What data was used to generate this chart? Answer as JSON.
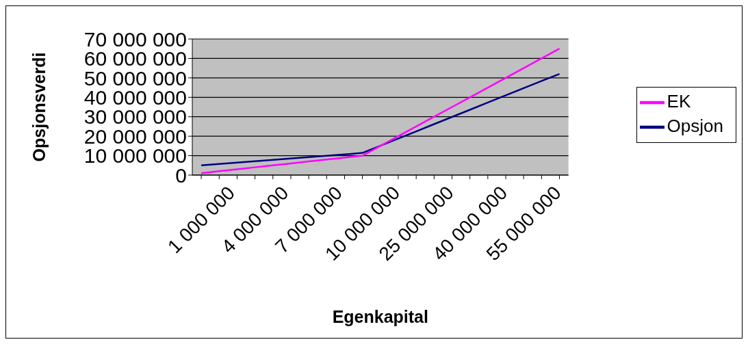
{
  "chart_data": {
    "type": "line",
    "xlabel": "Egenkapital",
    "ylabel": "Opsjonsverdi",
    "categories": [
      "1 000 000",
      null,
      null,
      "4 000 000",
      null,
      null,
      "7 000 000",
      null,
      null,
      "10 000 000",
      null,
      null,
      "25 000 000",
      null,
      null,
      "40 000 000",
      null,
      null,
      "55 000 000",
      null,
      null
    ],
    "series": [
      {
        "name": "Opsjon",
        "color": "#000080",
        "values": [
          5000000,
          5700000,
          6400000,
          7100000,
          7800000,
          8500000,
          9200000,
          9900000,
          10600000,
          11400000,
          15100000,
          18800000,
          22500000,
          26200000,
          29900000,
          33600000,
          37300000,
          41000000,
          44700000,
          48400000,
          52000000
        ]
      },
      {
        "name": "EK",
        "color": "#ff00ff",
        "values": [
          1000000,
          2000000,
          3000000,
          4000000,
          5000000,
          6000000,
          7000000,
          8000000,
          9000000,
          10000000,
          15000000,
          20000000,
          25000000,
          30000000,
          35000000,
          40000000,
          45000000,
          50000000,
          55000000,
          60000000,
          65000000
        ]
      }
    ],
    "ylim": [
      0,
      70000000
    ],
    "yticks": [
      {
        "value": 0,
        "label": "0"
      },
      {
        "value": 10000000,
        "label": "10 000 000"
      },
      {
        "value": 20000000,
        "label": "20 000 000"
      },
      {
        "value": 30000000,
        "label": "30 000 000"
      },
      {
        "value": 40000000,
        "label": "40 000 000"
      },
      {
        "value": 50000000,
        "label": "50 000 000"
      },
      {
        "value": 60000000,
        "label": "60 000 000"
      },
      {
        "value": 70000000,
        "label": "70 000 000"
      }
    ],
    "grid": "y",
    "legend": "right",
    "marker": "none",
    "line_style": "solid"
  }
}
